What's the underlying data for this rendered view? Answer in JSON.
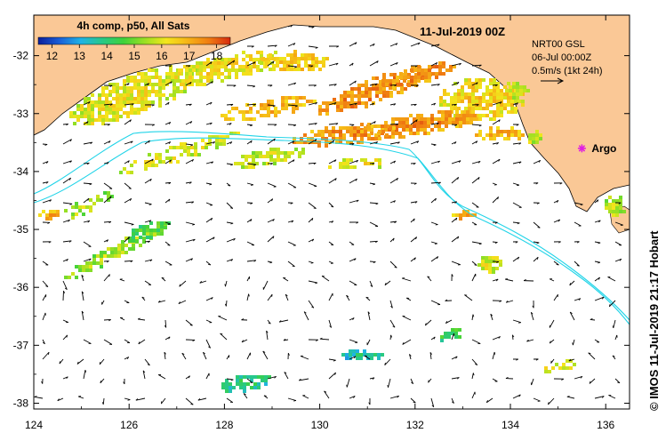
{
  "title": "11-Jul-2019 00Z",
  "colorbar": {
    "label": "4h comp, p50, All Sats",
    "tick_labels": [
      "12",
      "13",
      "14",
      "15",
      "16",
      "17",
      "18"
    ],
    "min": 11.5,
    "max": 18.5,
    "colors": [
      "#0b1e9c",
      "#1a5fd8",
      "#1fb3e6",
      "#27c987",
      "#3fd23a",
      "#9be023",
      "#f4e61c",
      "#f6b416",
      "#f07d12",
      "#d62a0e"
    ]
  },
  "legend": {
    "line1": "NRT00 GSL",
    "line2": "06-Jul 00:00Z",
    "line3": "0.5m/s (1kt 24h)"
  },
  "marker": {
    "label": "Argo",
    "lon": 135.5,
    "lat": -33.6,
    "color": "#e020e0"
  },
  "axes": {
    "x_ticks": [
      "124",
      "126",
      "128",
      "130",
      "132",
      "134",
      "136"
    ],
    "y_ticks": [
      "-32",
      "-33",
      "-34",
      "-35",
      "-36",
      "-37",
      "-38"
    ],
    "lon_range": [
      124,
      136.5
    ],
    "lat_range": [
      -38.1,
      -31.3
    ]
  },
  "credit": "© IMOS 11-Jul-2019 21:17 Hobart",
  "colors": {
    "land": "#fac896",
    "contour": "#22d4e8",
    "ocean": "#ffffff"
  }
}
